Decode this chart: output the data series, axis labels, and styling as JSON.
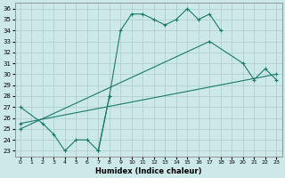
{
  "xlabel": "Humidex (Indice chaleur)",
  "xlim": [
    -0.5,
    23.5
  ],
  "ylim": [
    22.5,
    36.5
  ],
  "xticks": [
    0,
    1,
    2,
    3,
    4,
    5,
    6,
    7,
    8,
    9,
    10,
    11,
    12,
    13,
    14,
    15,
    16,
    17,
    18,
    19,
    20,
    21,
    22,
    23
  ],
  "yticks": [
    23,
    24,
    25,
    26,
    27,
    28,
    29,
    30,
    31,
    32,
    33,
    34,
    35,
    36
  ],
  "bg_color": "#cce8e8",
  "grid_color": "#b0d0d0",
  "line_color": "#1a7a6a",
  "line1_x": [
    0,
    2,
    3,
    4,
    5,
    6,
    7,
    8
  ],
  "line1_y": [
    27,
    25.5,
    24.5,
    23,
    24,
    24,
    23,
    28
  ],
  "line2_x": [
    7,
    8,
    9,
    10,
    11,
    12,
    13,
    14,
    15,
    16,
    17,
    18
  ],
  "line2_y": [
    23,
    28,
    34,
    35.5,
    35.5,
    35,
    34.5,
    35,
    36,
    35,
    35.5,
    34
  ],
  "line3_x": [
    0,
    17,
    20,
    21,
    22,
    23
  ],
  "line3_y": [
    25,
    33,
    31,
    29.5,
    30.5,
    29.5
  ],
  "line4_x": [
    0,
    23
  ],
  "line4_y": [
    25.5,
    30
  ]
}
